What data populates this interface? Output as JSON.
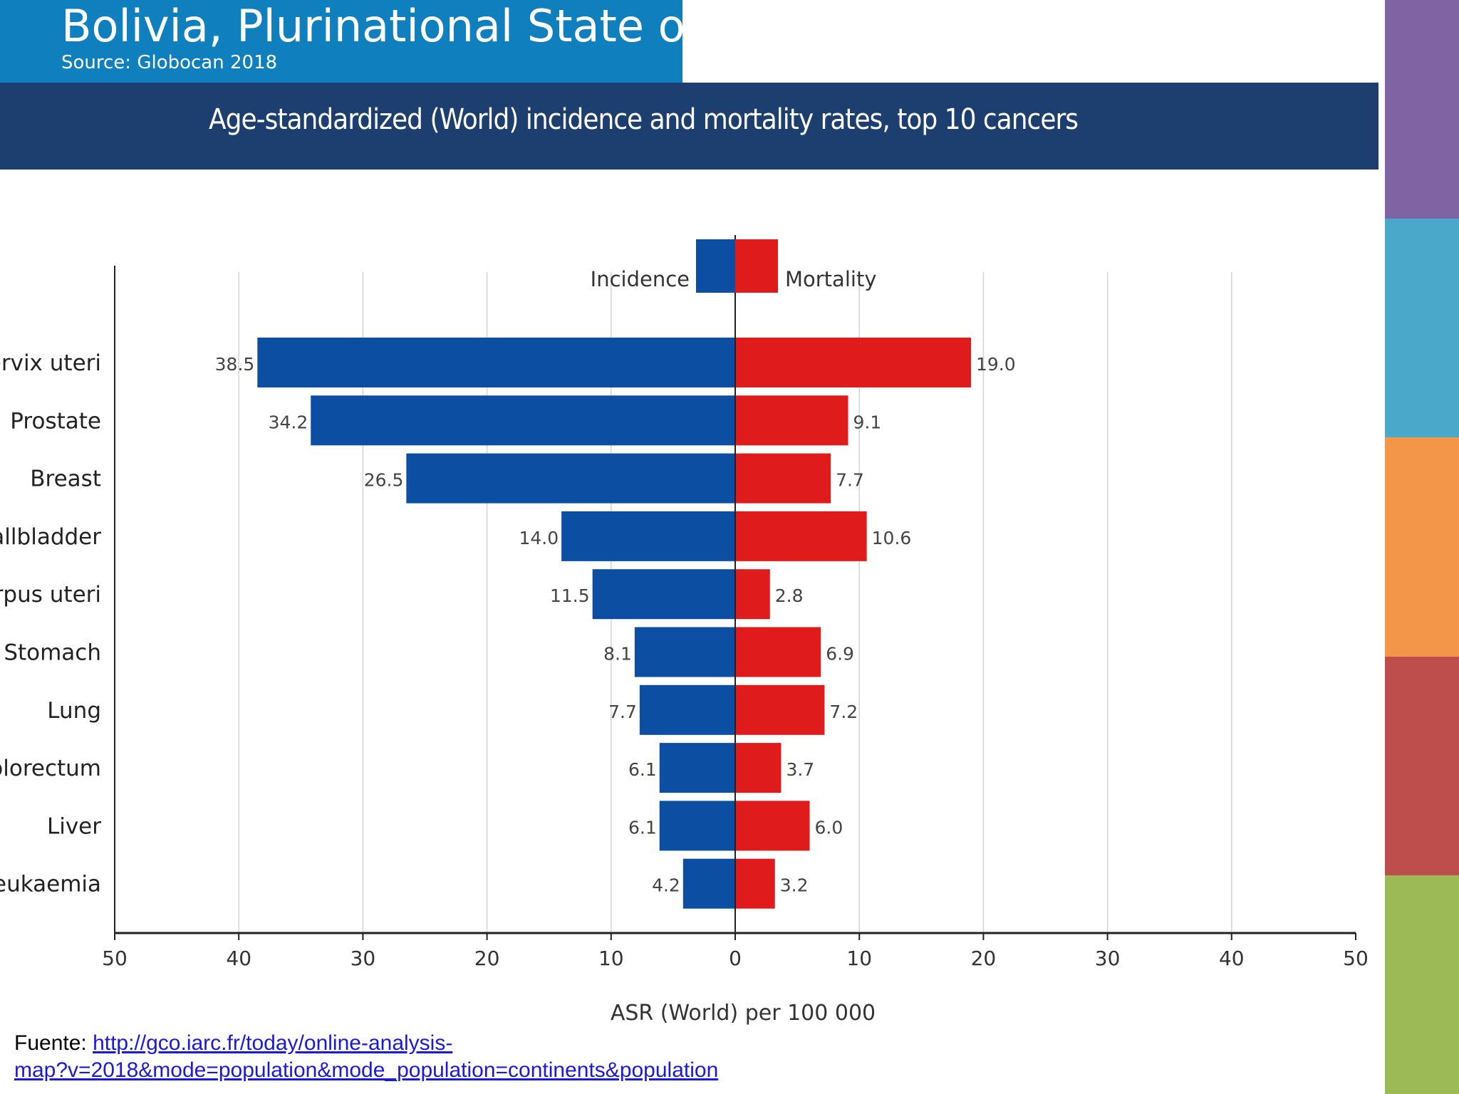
{
  "header": {
    "country": "Bolivia, Plurinational State of",
    "source": "Source: Globocan 2018"
  },
  "banner": {
    "title": "Age-standardized (World) incidence and mortality rates, top 10 cancers"
  },
  "footer": {
    "prefix": "Fuente: ",
    "link_line1": "http://gco.iarc.fr/today/online-analysis-",
    "link_line2": "map?v=2018&mode=population&mode_population=continents&population"
  },
  "colors": {
    "header_bg": "#0f7fbd",
    "banner_bg": "#1d3f6f",
    "incidence": "#0b4ea2",
    "mortality": "#e01b1b",
    "strip": [
      "#7f63a3",
      "#4aa8cb",
      "#f4964a",
      "#bd4e4c",
      "#9cbb57"
    ]
  },
  "chart_data": {
    "type": "bar",
    "orientation": "horizontal-butterfly",
    "title": "Age-standardized (World) incidence and mortality rates, top 10 cancers",
    "xlabel": "ASR (World) per 100 000",
    "ylabel": "",
    "xlim": [
      -50,
      50
    ],
    "x_ticks": [
      50,
      40,
      30,
      20,
      10,
      0,
      10,
      20,
      30,
      40,
      50
    ],
    "grid": true,
    "legend_position": "top-center",
    "categories": [
      "Cervix uteri",
      "Prostate",
      "Breast",
      "Gallbladder",
      "Corpus uteri",
      "Stomach",
      "Lung",
      "Colorectum",
      "Liver",
      "Leukaemia"
    ],
    "series": [
      {
        "name": "Incidence",
        "direction": "left",
        "values": [
          38.5,
          34.2,
          26.5,
          14.0,
          11.5,
          8.1,
          7.7,
          6.1,
          6.1,
          4.2
        ],
        "labels": [
          "38.5",
          "34.2",
          "26.5",
          "14.0",
          "11.5",
          "8.1",
          "7.7",
          "6.1",
          "6.1",
          "4.2"
        ]
      },
      {
        "name": "Mortality",
        "direction": "right",
        "values": [
          19.0,
          9.1,
          7.7,
          10.6,
          2.8,
          6.9,
          7.2,
          3.7,
          6.0,
          3.2
        ],
        "labels": [
          "19.0",
          "9.1",
          "7.7",
          "10.6",
          "2.8",
          "6.9",
          "7.2",
          "3.7",
          "6.0",
          "3.2"
        ]
      }
    ]
  }
}
